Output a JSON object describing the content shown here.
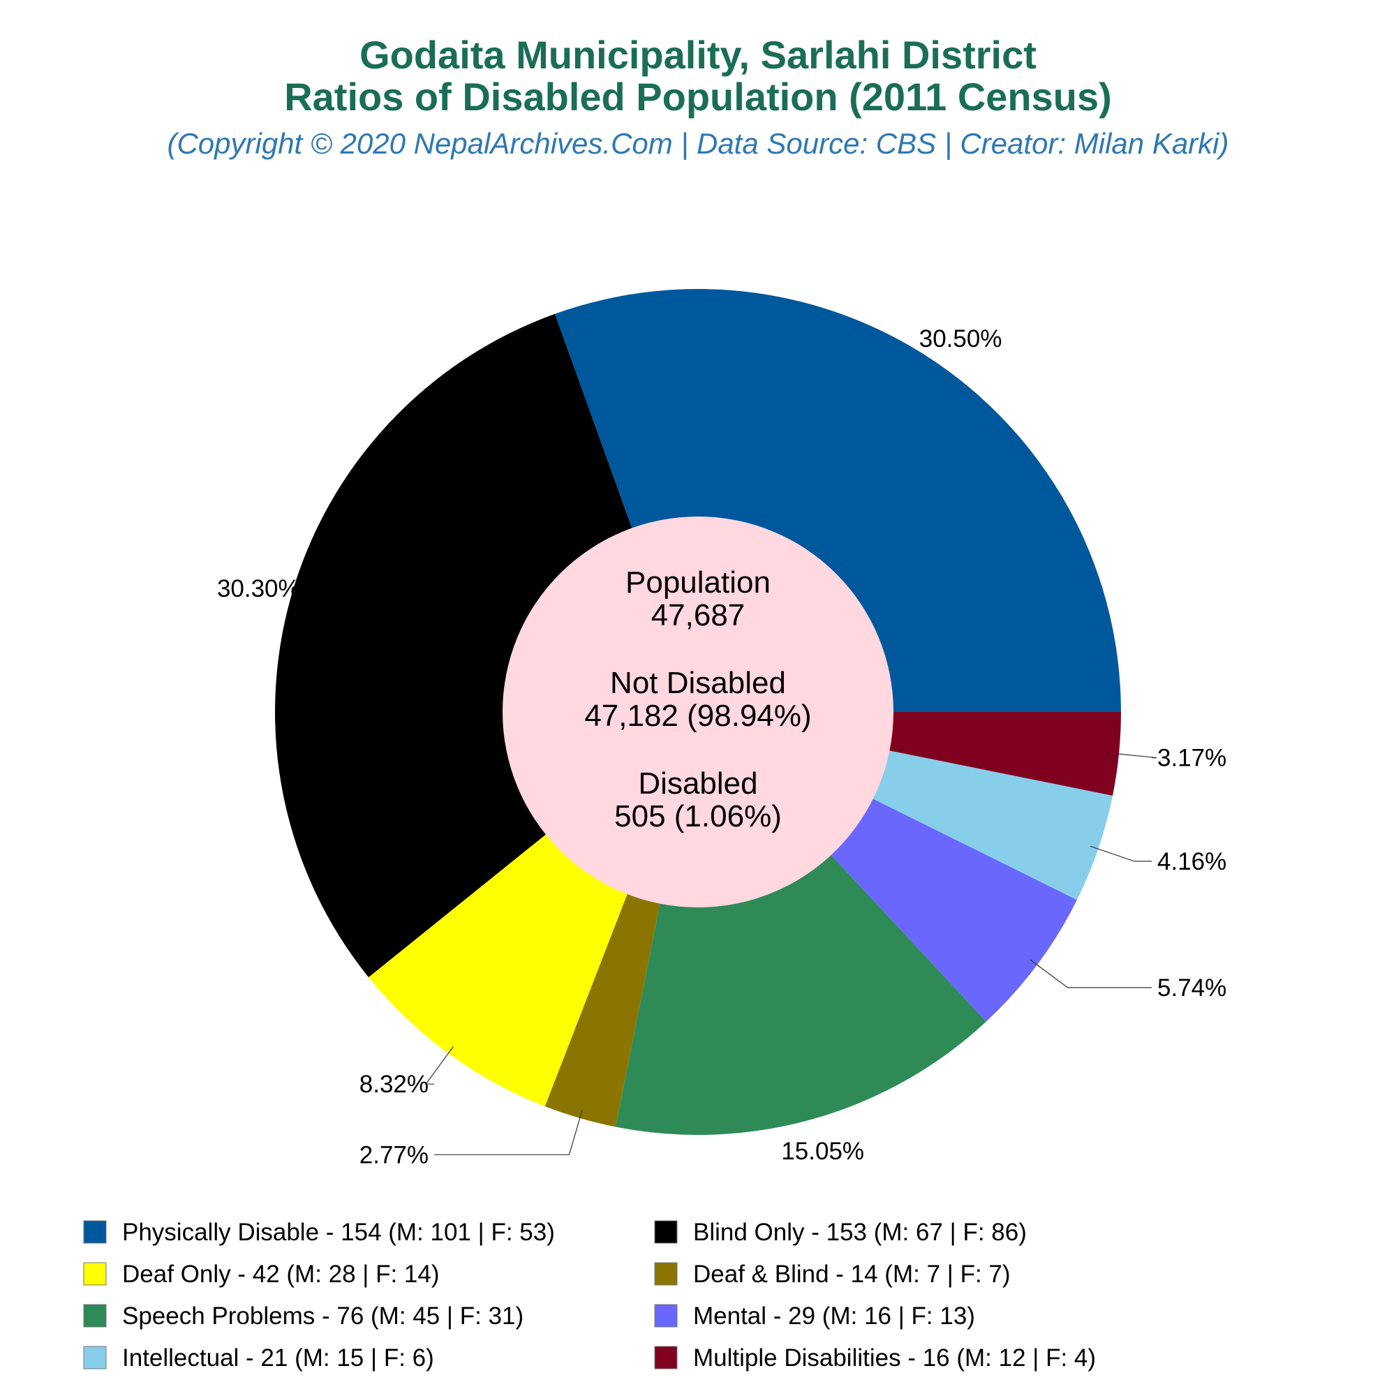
{
  "chart_data": {
    "type": "pie",
    "title_line1": "Godaita Municipality, Sarlahi District",
    "title_line2": "Ratios of Disabled Population (2011 Census)",
    "subtitle": "(Copyright © 2020 NepalArchives.Com | Data Source: CBS | Creator: Milan Karki)",
    "center": {
      "population_label": "Population",
      "population_value": "47,687",
      "not_disabled_label": "Not Disabled",
      "not_disabled_value": "47,182 (98.94%)",
      "disabled_label": "Disabled",
      "disabled_value": "505 (1.06%)"
    },
    "slices": [
      {
        "name": "Physically Disable",
        "value": 154,
        "male": 101,
        "female": 53,
        "percent_label": "30.50%",
        "color": "#00589c",
        "legend": "Physically Disable - 154 (M: 101 | F: 53)"
      },
      {
        "name": "Blind Only",
        "value": 153,
        "male": 67,
        "female": 86,
        "percent_label": "30.30%",
        "color": "#000000",
        "legend": "Blind Only - 153 (M: 67 | F: 86)"
      },
      {
        "name": "Deaf Only",
        "value": 42,
        "male": 28,
        "female": 14,
        "percent_label": "8.32%",
        "color": "#ffff00",
        "legend": "Deaf Only - 42 (M: 28 | F: 14)"
      },
      {
        "name": "Deaf & Blind",
        "value": 14,
        "male": 7,
        "female": 7,
        "percent_label": "2.77%",
        "color": "#8b7500",
        "legend": "Deaf & Blind - 14 (M: 7 | F: 7)"
      },
      {
        "name": "Speech Problems",
        "value": 76,
        "male": 45,
        "female": 31,
        "percent_label": "15.05%",
        "color": "#2e8b57",
        "legend": "Speech Problems - 76 (M: 45 | F: 31)"
      },
      {
        "name": "Mental",
        "value": 29,
        "male": 16,
        "female": 13,
        "percent_label": "5.74%",
        "color": "#6a67ff",
        "legend": "Mental - 29 (M: 16 | F: 13)"
      },
      {
        "name": "Intellectual",
        "value": 21,
        "male": 15,
        "female": 6,
        "percent_label": "4.16%",
        "color": "#87ceeb",
        "legend": "Intellectual - 21 (M: 15 | F: 6)"
      },
      {
        "name": "Multiple Disabilities",
        "value": 16,
        "male": 12,
        "female": 4,
        "percent_label": "3.17%",
        "color": "#800020",
        "legend": "Multiple Disabilities - 16 (M: 12 | F: 4)"
      }
    ],
    "center_color": "#ffd8e0",
    "title_color": "#1a6e55",
    "subtitle_color": "#2f78b0",
    "legend_placement": "bottom"
  }
}
